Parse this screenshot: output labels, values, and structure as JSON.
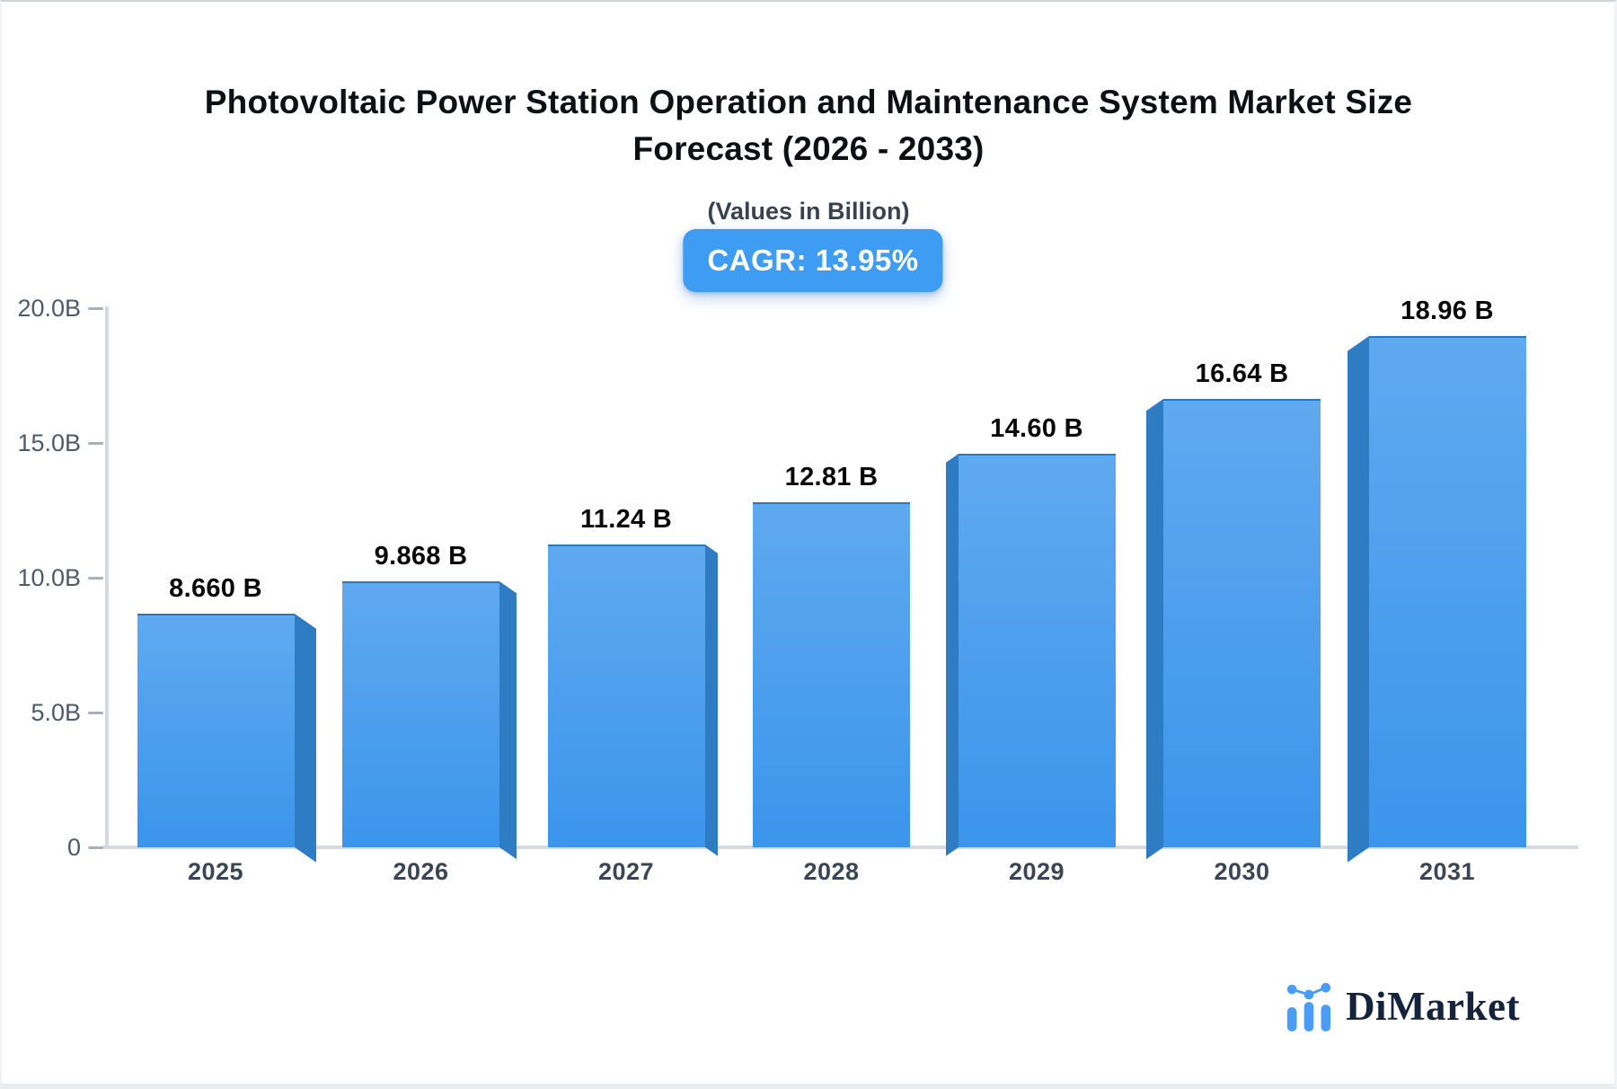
{
  "header": {
    "title_line1": "Photovoltaic Power Station Operation and Maintenance System Market Size",
    "title_line2": "Forecast (2026 - 2033)",
    "subtitle": "(Values in Billion)",
    "badge_label": "CAGR: 13.95%"
  },
  "chart_data": {
    "type": "bar",
    "title": "Photovoltaic Power Station Operation and Maintenance System Market Size Forecast (2026 - 2033)",
    "subtitle": "(Values in Billion)",
    "units": "Billion",
    "cagr": "13.95%",
    "categories": [
      "2025",
      "2026",
      "2027",
      "2028",
      "2029",
      "2030",
      "2031"
    ],
    "values": [
      8.66,
      9.868,
      11.24,
      12.81,
      14.6,
      16.64,
      18.96
    ],
    "value_labels": [
      "8.660 B",
      "9.868 B",
      "11.24 B",
      "12.81 B",
      "14.60 B",
      "16.64 B",
      "18.96 B"
    ],
    "xlabel": "",
    "ylabel": "",
    "ylim": [
      0,
      20
    ],
    "grid": false,
    "legend": "none",
    "y_ticks": [
      {
        "label": "20.0B",
        "value": 20
      },
      {
        "label": "15.0B",
        "value": 15
      },
      {
        "label": "10.0B",
        "value": 10
      },
      {
        "label": "5.0B",
        "value": 5
      },
      {
        "label": "0",
        "value": 0
      }
    ]
  },
  "logo": {
    "text": "DiMarket"
  },
  "colors": {
    "accent": "#3f9cf3",
    "bar_top": "#5fa9f0",
    "bar_bottom": "#3b95eb",
    "bar_side": "#2e7dc4",
    "navy": "#16233c",
    "logo_blue": "#4a9df6",
    "axis": "#d6d9de",
    "tick_text": "#4e5a69",
    "year_text": "#3c4553",
    "value_text": "#0a0a0a",
    "title_text": "#0e1013",
    "subtitle_text": "#3a4250",
    "frame_top": "#ccd3da",
    "frame_side": "#f0f2f5",
    "frame_bottom": "#e9edf0"
  }
}
